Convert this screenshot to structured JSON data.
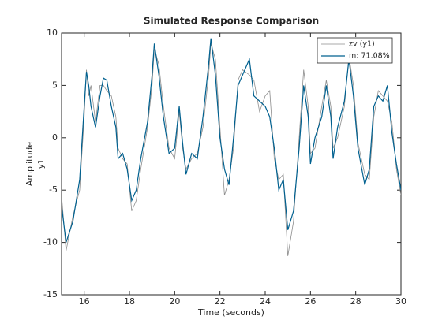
{
  "chart_data": {
    "type": "line",
    "title": "Simulated Response Comparison",
    "xlabel": "Time (seconds)",
    "ylabel": "Amplitude",
    "output_name": "y1",
    "x": [
      15,
      15.2,
      15.5,
      15.8,
      16,
      16.1,
      16.2,
      16.3,
      16.5,
      16.7,
      16.85,
      17,
      17.2,
      17.4,
      17.5,
      17.7,
      17.9,
      18.1,
      18.3,
      18.5,
      18.8,
      19,
      19.1,
      19.3,
      19.5,
      19.75,
      20,
      20.2,
      20.35,
      20.5,
      20.75,
      21,
      21.25,
      21.5,
      21.6,
      21.8,
      22,
      22.2,
      22.4,
      22.6,
      22.8,
      23,
      23.3,
      23.5,
      23.75,
      24,
      24.2,
      24.4,
      24.6,
      24.8,
      25,
      25.25,
      25.5,
      25.7,
      25.9,
      26,
      26.2,
      26.5,
      26.7,
      26.9,
      27,
      27.2,
      27.5,
      27.7,
      27.9,
      28.1,
      28.4,
      28.6,
      28.8,
      29,
      29.2,
      29.4,
      29.6,
      29.8,
      30
    ],
    "series": [
      {
        "name": "zv (y1)",
        "color": "#8c8c8c",
        "width": 0.8,
        "values": [
          -5.5,
          -10.8,
          -7.5,
          -5,
          2,
          6.5,
          4,
          5,
          1.5,
          5,
          5,
          4.5,
          4,
          2,
          -1,
          -2,
          -2.5,
          -7,
          -6,
          -3,
          1,
          5,
          8.5,
          7,
          3,
          -1,
          -2,
          2.5,
          -1,
          -3,
          -2,
          -1.5,
          1,
          6,
          9,
          7.5,
          1,
          -5.5,
          -4,
          -1,
          5.5,
          6.5,
          6,
          5.5,
          2.5,
          4,
          4.5,
          -2,
          -4,
          -3.5,
          -11.3,
          -8,
          0,
          6.5,
          3,
          -1.5,
          -1,
          3,
          5.5,
          3,
          -1,
          0,
          3,
          7.8,
          5,
          -0.5,
          -3.5,
          -4,
          2,
          4.5,
          4,
          3.5,
          1.5,
          -3,
          -5.5
        ]
      },
      {
        "name": "m: 71.08%",
        "color": "#00608f",
        "width": 1.2,
        "values": [
          -6.5,
          -10,
          -8,
          -4,
          3,
          6.3,
          5,
          3,
          1,
          4,
          5.7,
          5.5,
          3,
          1,
          -2,
          -1.5,
          -3,
          -6,
          -5,
          -2,
          1.5,
          6,
          9,
          6,
          2,
          -1.5,
          -1,
          3,
          -0.5,
          -3.5,
          -1.5,
          -2,
          2,
          7,
          9.5,
          6,
          0,
          -3,
          -4.5,
          0,
          5,
          6,
          7.5,
          4,
          3.5,
          3,
          2,
          -1,
          -5,
          -4,
          -8.8,
          -7,
          -1,
          5,
          2,
          -2.5,
          0,
          2,
          5,
          2,
          -2,
          1,
          3.5,
          7.5,
          4,
          -1,
          -4.5,
          -3,
          3,
          4,
          3.5,
          5,
          0.5,
          -2.5,
          -5
        ]
      }
    ],
    "xlim": [
      15,
      30
    ],
    "xticks": [
      16,
      18,
      20,
      22,
      24,
      26,
      28,
      30
    ],
    "ylim": [
      -15,
      10
    ],
    "yticks": [
      -15,
      -10,
      -5,
      0,
      5,
      10
    ],
    "grid": false,
    "legend": "upper right"
  }
}
